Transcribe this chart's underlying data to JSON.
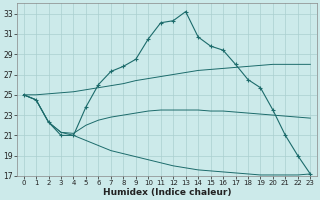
{
  "background_color": "#cceaea",
  "grid_color": "#aacfcf",
  "line_color": "#1c6b6b",
  "xlabel": "Humidex (Indice chaleur)",
  "ylim": [
    17,
    34
  ],
  "xlim": [
    -0.5,
    23.5
  ],
  "yticks": [
    17,
    19,
    21,
    23,
    25,
    27,
    29,
    31,
    33
  ],
  "xticks": [
    0,
    1,
    2,
    3,
    4,
    5,
    6,
    7,
    8,
    9,
    10,
    11,
    12,
    13,
    14,
    15,
    16,
    17,
    18,
    19,
    20,
    21,
    22,
    23
  ],
  "line1_x": [
    0,
    1,
    2,
    3,
    4,
    5,
    6,
    7,
    8,
    9,
    10,
    11,
    12,
    13,
    14,
    15,
    16,
    17,
    18,
    19,
    20,
    21,
    22,
    23
  ],
  "line1_y": [
    25.0,
    24.5,
    22.3,
    21.0,
    21.0,
    23.8,
    26.0,
    27.3,
    27.8,
    28.5,
    30.5,
    32.1,
    32.3,
    33.2,
    30.7,
    29.8,
    29.4,
    28.0,
    26.5,
    25.7,
    23.5,
    21.0,
    19.0,
    17.2
  ],
  "line_upper_x": [
    0,
    1,
    2,
    3,
    4,
    5,
    6,
    7,
    8,
    9,
    10,
    11,
    12,
    13,
    14,
    15,
    16,
    17,
    18,
    19,
    20,
    21,
    22,
    23
  ],
  "line_upper_y": [
    25.0,
    25.0,
    25.1,
    25.2,
    25.3,
    25.5,
    25.7,
    25.9,
    26.1,
    26.4,
    26.6,
    26.8,
    27.0,
    27.2,
    27.4,
    27.5,
    27.6,
    27.7,
    27.8,
    27.9,
    28.0,
    28.0,
    28.0,
    28.0
  ],
  "line_mid_x": [
    0,
    1,
    2,
    3,
    4,
    5,
    6,
    7,
    8,
    9,
    10,
    11,
    12,
    13,
    14,
    15,
    16,
    17,
    18,
    19,
    20,
    21,
    22,
    23
  ],
  "line_mid_y": [
    25.0,
    24.5,
    22.3,
    21.3,
    21.2,
    22.0,
    22.5,
    22.8,
    23.0,
    23.2,
    23.4,
    23.5,
    23.5,
    23.5,
    23.5,
    23.4,
    23.4,
    23.3,
    23.2,
    23.1,
    23.0,
    22.9,
    22.8,
    22.7
  ],
  "line_low_x": [
    0,
    1,
    2,
    3,
    4,
    5,
    6,
    7,
    8,
    9,
    10,
    11,
    12,
    13,
    14,
    15,
    16,
    17,
    18,
    19,
    20,
    21,
    22,
    23
  ],
  "line_low_y": [
    25.0,
    24.5,
    22.3,
    21.3,
    21.0,
    20.5,
    20.0,
    19.5,
    19.2,
    18.9,
    18.6,
    18.3,
    18.0,
    17.8,
    17.6,
    17.5,
    17.4,
    17.3,
    17.2,
    17.1,
    17.1,
    17.1,
    17.1,
    17.2
  ]
}
